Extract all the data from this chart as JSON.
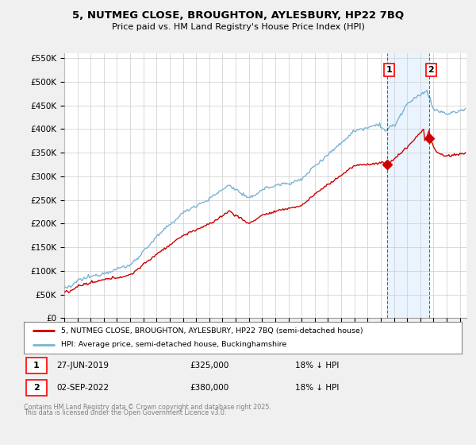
{
  "title": "5, NUTMEG CLOSE, BROUGHTON, AYLESBURY, HP22 7BQ",
  "subtitle": "Price paid vs. HM Land Registry's House Price Index (HPI)",
  "ylim": [
    0,
    560000
  ],
  "xlim_start": 1995.0,
  "xlim_end": 2025.5,
  "hpi_color": "#7ab3d4",
  "price_color": "#cc0000",
  "shade_color": "#ddeeff",
  "sale1_date": "27-JUN-2019",
  "sale1_price": 325000,
  "sale1_label": "18% ↓ HPI",
  "sale1_year": 2019.49,
  "sale2_date": "02-SEP-2022",
  "sale2_price": 380000,
  "sale2_label": "18% ↓ HPI",
  "sale2_year": 2022.67,
  "legend_label1": "5, NUTMEG CLOSE, BROUGHTON, AYLESBURY, HP22 7BQ (semi-detached house)",
  "legend_label2": "HPI: Average price, semi-detached house, Buckinghamshire",
  "footer1": "Contains HM Land Registry data © Crown copyright and database right 2025.",
  "footer2": "This data is licensed under the Open Government Licence v3.0.",
  "background_color": "#f0f0f0",
  "plot_background": "#ffffff"
}
